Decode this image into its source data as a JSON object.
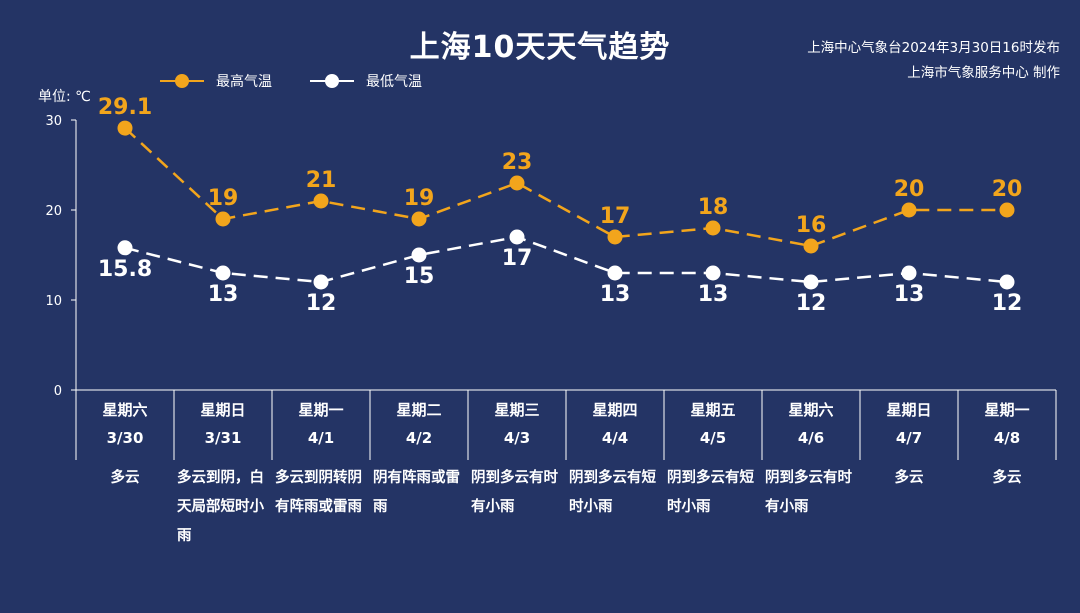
{
  "title": "上海10天天气趋势",
  "credit": {
    "line1": "上海中心气象台2024年3月30日16时发布",
    "line2": "上海市气象服务中心 制作"
  },
  "unit_label": "单位: ℃",
  "colors": {
    "background": "#243465",
    "high": "#F2A51C",
    "low": "#FFFFFF",
    "axis": "#FFFFFF"
  },
  "days": [
    {
      "weekday": "星期六",
      "date": "3/30",
      "weather": "多云"
    },
    {
      "weekday": "星期日",
      "date": "3/31",
      "weather": "多云到阴，白天局部短时小雨"
    },
    {
      "weekday": "星期一",
      "date": "4/1",
      "weather": "多云到阴转阴有阵雨或雷雨"
    },
    {
      "weekday": "星期二",
      "date": "4/2",
      "weather": "阴有阵雨或雷雨"
    },
    {
      "weekday": "星期三",
      "date": "4/3",
      "weather": "阴到多云有时有小雨"
    },
    {
      "weekday": "星期四",
      "date": "4/4",
      "weather": "阴到多云有短时小雨"
    },
    {
      "weekday": "星期五",
      "date": "4/5",
      "weather": "阴到多云有短时小雨"
    },
    {
      "weekday": "星期六",
      "date": "4/6",
      "weather": "阴到多云有时有小雨"
    },
    {
      "weekday": "星期日",
      "date": "4/7",
      "weather": "多云"
    },
    {
      "weekday": "星期一",
      "date": "4/8",
      "weather": "多云"
    }
  ],
  "chart_data": {
    "type": "line",
    "title": "上海10天天气趋势",
    "ylabel": "单位: ℃",
    "ylim": [
      0,
      30
    ],
    "yticks": [
      0,
      10,
      20,
      30
    ],
    "grid": false,
    "legend": "top-left",
    "categories": [
      "3/30",
      "3/31",
      "4/1",
      "4/2",
      "4/3",
      "4/4",
      "4/5",
      "4/6",
      "4/7",
      "4/8"
    ],
    "series": [
      {
        "name": "最高气温",
        "color": "#F2A51C",
        "values": [
          29.1,
          19,
          21,
          19,
          23,
          17,
          18,
          16,
          20,
          20
        ],
        "labels": [
          "29.1",
          "19",
          "21",
          "19",
          "23",
          "17",
          "18",
          "16",
          "20",
          "20"
        ]
      },
      {
        "name": "最低气温",
        "color": "#FFFFFF",
        "values": [
          15.8,
          13,
          12,
          15,
          17,
          13,
          13,
          12,
          13,
          12
        ],
        "labels": [
          "15.8",
          "13",
          "12",
          "15",
          "17",
          "13",
          "13",
          "12",
          "13",
          "12"
        ]
      }
    ]
  }
}
